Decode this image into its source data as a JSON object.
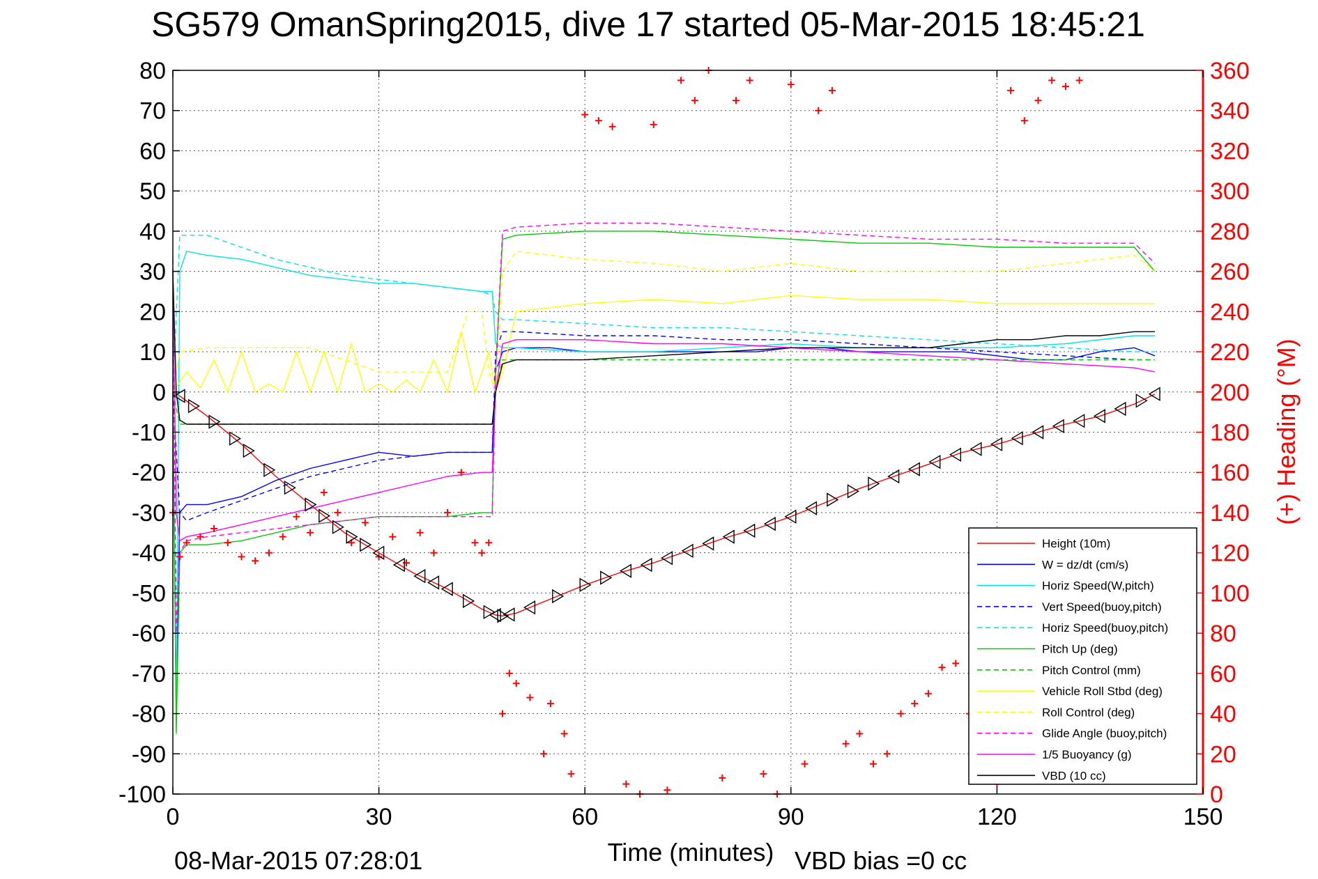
{
  "chart_data": {
    "type": "line",
    "title": "SG579 OmanSpring2015, dive 17 started 05-Mar-2015 18:45:21",
    "xlabel": "Time (minutes)",
    "ylabel_right": "(+) Heading (°M)",
    "xlim": [
      0,
      150
    ],
    "ylim": [
      -100,
      80
    ],
    "ylim_right": [
      0,
      360
    ],
    "x_ticks": [
      "0",
      "30",
      "60",
      "90",
      "120",
      "150"
    ],
    "y_ticks": [
      "80",
      "70",
      "60",
      "50",
      "40",
      "30",
      "20",
      "10",
      "0",
      "-10",
      "-20",
      "-30",
      "-40",
      "-50",
      "-60",
      "-70",
      "-80",
      "-90",
      "-100"
    ],
    "y_right_ticks": [
      "360",
      "340",
      "320",
      "300",
      "280",
      "260",
      "240",
      "220",
      "200",
      "180",
      "160",
      "140",
      "120",
      "100",
      "80",
      "60",
      "40",
      "20",
      "0"
    ],
    "grid": true,
    "legend_position": "bottom-right",
    "footer_left": "08-Mar-2015 07:28:01",
    "footer_right": "VBD bias =0 cc",
    "series": [
      {
        "name": "Height (10m)",
        "color": "#ff0000",
        "style": "solid",
        "x": [
          0,
          1,
          5,
          10,
          15,
          20,
          25,
          30,
          35,
          40,
          45,
          47,
          48,
          50,
          55,
          60,
          65,
          70,
          75,
          80,
          85,
          90,
          95,
          100,
          105,
          110,
          115,
          120,
          125,
          130,
          135,
          140,
          143
        ],
        "y": [
          0,
          -1,
          -6,
          -13,
          -21,
          -28,
          -35,
          -40,
          -45,
          -49,
          -54,
          -55.5,
          -55.7,
          -55,
          -51.5,
          -48,
          -45,
          -42.5,
          -39.5,
          -36.5,
          -34,
          -31,
          -27.5,
          -24,
          -21,
          -18,
          -15,
          -13,
          -10.5,
          -8,
          -6,
          -3,
          -0.5
        ]
      },
      {
        "name": "W = dz/dt (cm/s)",
        "color": "#0000ff",
        "style": "solid",
        "x": [
          0,
          0.5,
          1,
          2,
          5,
          10,
          15,
          20,
          25,
          30,
          35,
          40,
          45,
          46.5,
          47,
          48,
          50,
          55,
          60,
          65,
          70,
          75,
          80,
          85,
          90,
          95,
          100,
          105,
          110,
          115,
          120,
          125,
          130,
          135,
          140,
          143
        ],
        "y": [
          0,
          -80,
          -30,
          -28,
          -28,
          -26,
          -22,
          -19,
          -17,
          -15,
          -16,
          -15,
          -15,
          -15,
          5,
          10,
          11,
          11,
          10,
          10,
          10,
          10,
          10,
          10,
          11,
          11,
          10,
          10,
          10,
          10,
          9,
          8,
          8,
          10,
          11,
          9
        ]
      },
      {
        "name": "Horiz Speed(W,pitch)",
        "color": "#00e6e6",
        "style": "solid",
        "x": [
          0,
          0.5,
          1,
          2,
          5,
          10,
          15,
          20,
          25,
          30,
          35,
          40,
          45,
          46.5,
          47,
          48,
          50,
          60,
          70,
          80,
          90,
          100,
          110,
          120,
          130,
          140,
          143
        ],
        "y": [
          0,
          -80,
          30,
          35,
          34,
          33,
          31,
          29,
          28,
          27,
          27,
          26,
          25,
          25,
          12,
          11,
          11,
          10,
          10,
          11,
          12,
          11,
          11,
          11,
          12,
          14,
          14
        ]
      },
      {
        "name": "Vert Speed(buoy,pitch)",
        "color": "#0000ff",
        "style": "dashed",
        "x": [
          0,
          1,
          2,
          5,
          10,
          15,
          20,
          25,
          30,
          35,
          40,
          45,
          46.5,
          47,
          48,
          50,
          60,
          70,
          80,
          90,
          100,
          110,
          120,
          130,
          140,
          143
        ],
        "y": [
          0,
          -30,
          -32,
          -30,
          -27,
          -24,
          -21,
          -19,
          -17,
          -16,
          -15,
          -15,
          -15,
          10,
          15,
          15,
          14,
          14,
          13,
          13,
          12,
          11,
          10,
          9,
          8,
          8
        ]
      },
      {
        "name": "Horiz Speed(buoy,pitch)",
        "color": "#00e6e6",
        "style": "dashed",
        "x": [
          0,
          1,
          2,
          5,
          10,
          15,
          20,
          25,
          30,
          35,
          40,
          45,
          46.5,
          47,
          48,
          50,
          60,
          70,
          80,
          90,
          100,
          110,
          120,
          130,
          140,
          143
        ],
        "y": [
          0,
          39,
          39,
          39,
          36,
          33,
          31,
          29,
          28,
          27,
          26,
          25,
          24,
          20,
          18,
          18,
          17,
          16,
          16,
          15,
          14,
          13,
          12,
          11,
          10,
          10
        ]
      },
      {
        "name": "Pitch Up (deg)",
        "color": "#00cc00",
        "style": "solid",
        "x": [
          0,
          0.5,
          1,
          2,
          5,
          10,
          20,
          30,
          40,
          45,
          46.5,
          47,
          48,
          50,
          60,
          70,
          80,
          90,
          100,
          110,
          120,
          130,
          140,
          143
        ],
        "y": [
          0,
          -85,
          -40,
          -38,
          -38,
          -37,
          -33,
          -31,
          -31,
          -30,
          -30,
          5,
          38,
          39,
          40,
          40,
          39,
          38,
          37,
          37,
          36,
          36,
          36,
          30
        ]
      },
      {
        "name": "Pitch Control (mm)",
        "color": "#00cc00",
        "style": "dashed",
        "x": [
          0,
          1,
          2,
          5,
          10,
          20,
          30,
          40,
          45,
          46.5,
          47,
          48,
          50,
          60,
          70,
          80,
          90,
          100,
          110,
          120,
          130,
          140,
          143
        ],
        "y": [
          0,
          -8,
          -8,
          -8,
          -8,
          -8,
          -8,
          -8,
          -8,
          -8,
          0,
          8,
          8,
          8,
          8,
          8,
          8,
          8,
          8,
          8,
          8,
          8,
          8
        ]
      },
      {
        "name": "Vehicle Roll Stbd (deg)",
        "color": "#ffff00",
        "style": "solid",
        "x": [
          0,
          2,
          4,
          6,
          8,
          10,
          12,
          14,
          16,
          18,
          20,
          22,
          24,
          26,
          28,
          30,
          32,
          34,
          36,
          38,
          40,
          42,
          44,
          46,
          47,
          48,
          50,
          60,
          70,
          80,
          90,
          100,
          110,
          120,
          130,
          140,
          143
        ],
        "y": [
          0,
          5,
          1,
          8,
          0,
          10,
          0,
          2,
          0,
          10,
          0,
          10,
          0,
          12,
          0,
          2,
          0,
          3,
          0,
          8,
          0,
          15,
          0,
          10,
          0,
          5,
          20,
          22,
          23,
          22,
          24,
          23,
          23,
          22,
          22,
          22,
          22
        ]
      },
      {
        "name": "Roll Control (deg)",
        "color": "#ffff00",
        "style": "dashed",
        "x": [
          0,
          1,
          5,
          10,
          20,
          30,
          40,
          43,
          45,
          46,
          47,
          48,
          50,
          60,
          70,
          80,
          90,
          100,
          110,
          120,
          130,
          140,
          143
        ],
        "y": [
          0,
          10,
          11,
          11,
          11,
          5,
          5,
          20,
          20,
          5,
          0,
          30,
          35,
          33,
          32,
          30,
          32,
          30,
          30,
          30,
          32,
          34,
          30
        ]
      },
      {
        "name": "Glide Angle (buoy,pitch)",
        "color": "#ff00ff",
        "style": "dashed",
        "x": [
          0,
          0.5,
          1,
          2,
          5,
          10,
          20,
          30,
          40,
          45,
          46.5,
          47,
          48,
          50,
          60,
          70,
          80,
          90,
          100,
          110,
          120,
          130,
          140,
          143
        ],
        "y": [
          33,
          -60,
          -40,
          -37,
          -36,
          -35,
          -33,
          -31,
          -31,
          -31,
          -31,
          5,
          40,
          41,
          42,
          42,
          41,
          40,
          39,
          38,
          38,
          37,
          37,
          32
        ]
      },
      {
        "name": "1/5 Buoyancy (g)",
        "color": "#ff00ff",
        "style": "solid",
        "x": [
          0,
          0.5,
          1,
          2,
          5,
          10,
          15,
          20,
          25,
          30,
          35,
          40,
          45,
          46.5,
          47,
          48,
          50,
          60,
          70,
          80,
          90,
          100,
          110,
          120,
          130,
          140,
          143
        ],
        "y": [
          30,
          -30,
          -37,
          -36,
          -35,
          -33,
          -31,
          -29,
          -27,
          -25,
          -23,
          -21,
          -20,
          -20,
          0,
          12,
          13,
          13,
          12,
          12,
          11,
          10,
          9,
          8,
          7,
          6,
          5
        ]
      },
      {
        "name": "VBD (10 cc)",
        "color": "#000000",
        "style": "solid",
        "x": [
          0,
          0.5,
          1,
          2,
          5,
          10,
          20,
          30,
          40,
          45,
          46.5,
          47,
          48,
          50,
          60,
          70,
          80,
          90,
          100,
          110,
          115,
          120,
          125,
          130,
          135,
          140,
          143
        ],
        "y": [
          30,
          0,
          -7,
          -8,
          -8,
          -8,
          -8,
          -8,
          -8,
          -8,
          -8,
          0,
          7,
          8,
          8,
          9,
          10,
          11,
          11,
          11,
          12,
          13,
          13,
          14,
          14,
          15,
          15
        ]
      }
    ],
    "heading_series": {
      "name": "(+) Heading (°M)",
      "color": "#ff0000",
      "marker": "+",
      "x": [
        0,
        1,
        2,
        4,
        6,
        8,
        10,
        12,
        14,
        16,
        18,
        20,
        22,
        24,
        26,
        28,
        30,
        32,
        34,
        36,
        38,
        40,
        42,
        44,
        45,
        46,
        48,
        49,
        50,
        52,
        54,
        55,
        57,
        58,
        60,
        62,
        64,
        66,
        68,
        70,
        72,
        74,
        76,
        78,
        80,
        82,
        84,
        86,
        88,
        90,
        92,
        94,
        96,
        98,
        100,
        102,
        104,
        106,
        108,
        110,
        112,
        114,
        116,
        118,
        120,
        122,
        124,
        126,
        128,
        130,
        132
      ],
      "y": [
        140,
        118,
        125,
        128,
        132,
        125,
        118,
        116,
        120,
        128,
        138,
        130,
        150,
        140,
        125,
        135,
        118,
        128,
        115,
        130,
        120,
        140,
        160,
        125,
        120,
        125,
        40,
        60,
        55,
        48,
        20,
        45,
        30,
        10,
        338,
        335,
        332,
        5,
        0,
        333,
        2,
        355,
        345,
        360,
        8,
        345,
        355,
        10,
        0,
        353,
        15,
        340,
        350,
        25,
        30,
        15,
        20,
        40,
        45,
        50,
        63,
        65,
        40,
        15,
        5,
        350,
        335,
        345,
        355,
        352,
        355
      ]
    },
    "glide_markers": {
      "name": "Height markers (triangles)",
      "color": "#000000",
      "x": [
        1,
        3,
        6,
        9,
        11,
        14,
        17,
        20,
        22,
        24,
        26,
        28,
        30,
        33,
        36,
        38,
        40,
        43,
        46,
        47,
        48,
        49,
        52,
        56,
        60,
        63,
        66,
        69,
        72,
        75,
        78,
        81,
        84,
        87,
        90,
        93,
        96,
        99,
        102,
        105,
        108,
        111,
        114,
        117,
        120,
        123,
        126,
        129,
        132,
        135,
        138,
        141,
        143
      ],
      "direction": [
        "left",
        "right",
        "right",
        "right",
        "right",
        "right",
        "right",
        "right",
        "right",
        "right",
        "right",
        "right",
        "left",
        "left",
        "left",
        "left",
        "left",
        "right",
        "right",
        "left",
        "right",
        "left",
        "left",
        "right",
        "right",
        "right",
        "left",
        "left",
        "left",
        "left",
        "left",
        "left",
        "left",
        "left",
        "left",
        "left",
        "right",
        "right",
        "right",
        "left",
        "left",
        "left",
        "left",
        "left",
        "left",
        "left",
        "left",
        "left",
        "left",
        "left",
        "left",
        "right",
        "left"
      ]
    }
  }
}
